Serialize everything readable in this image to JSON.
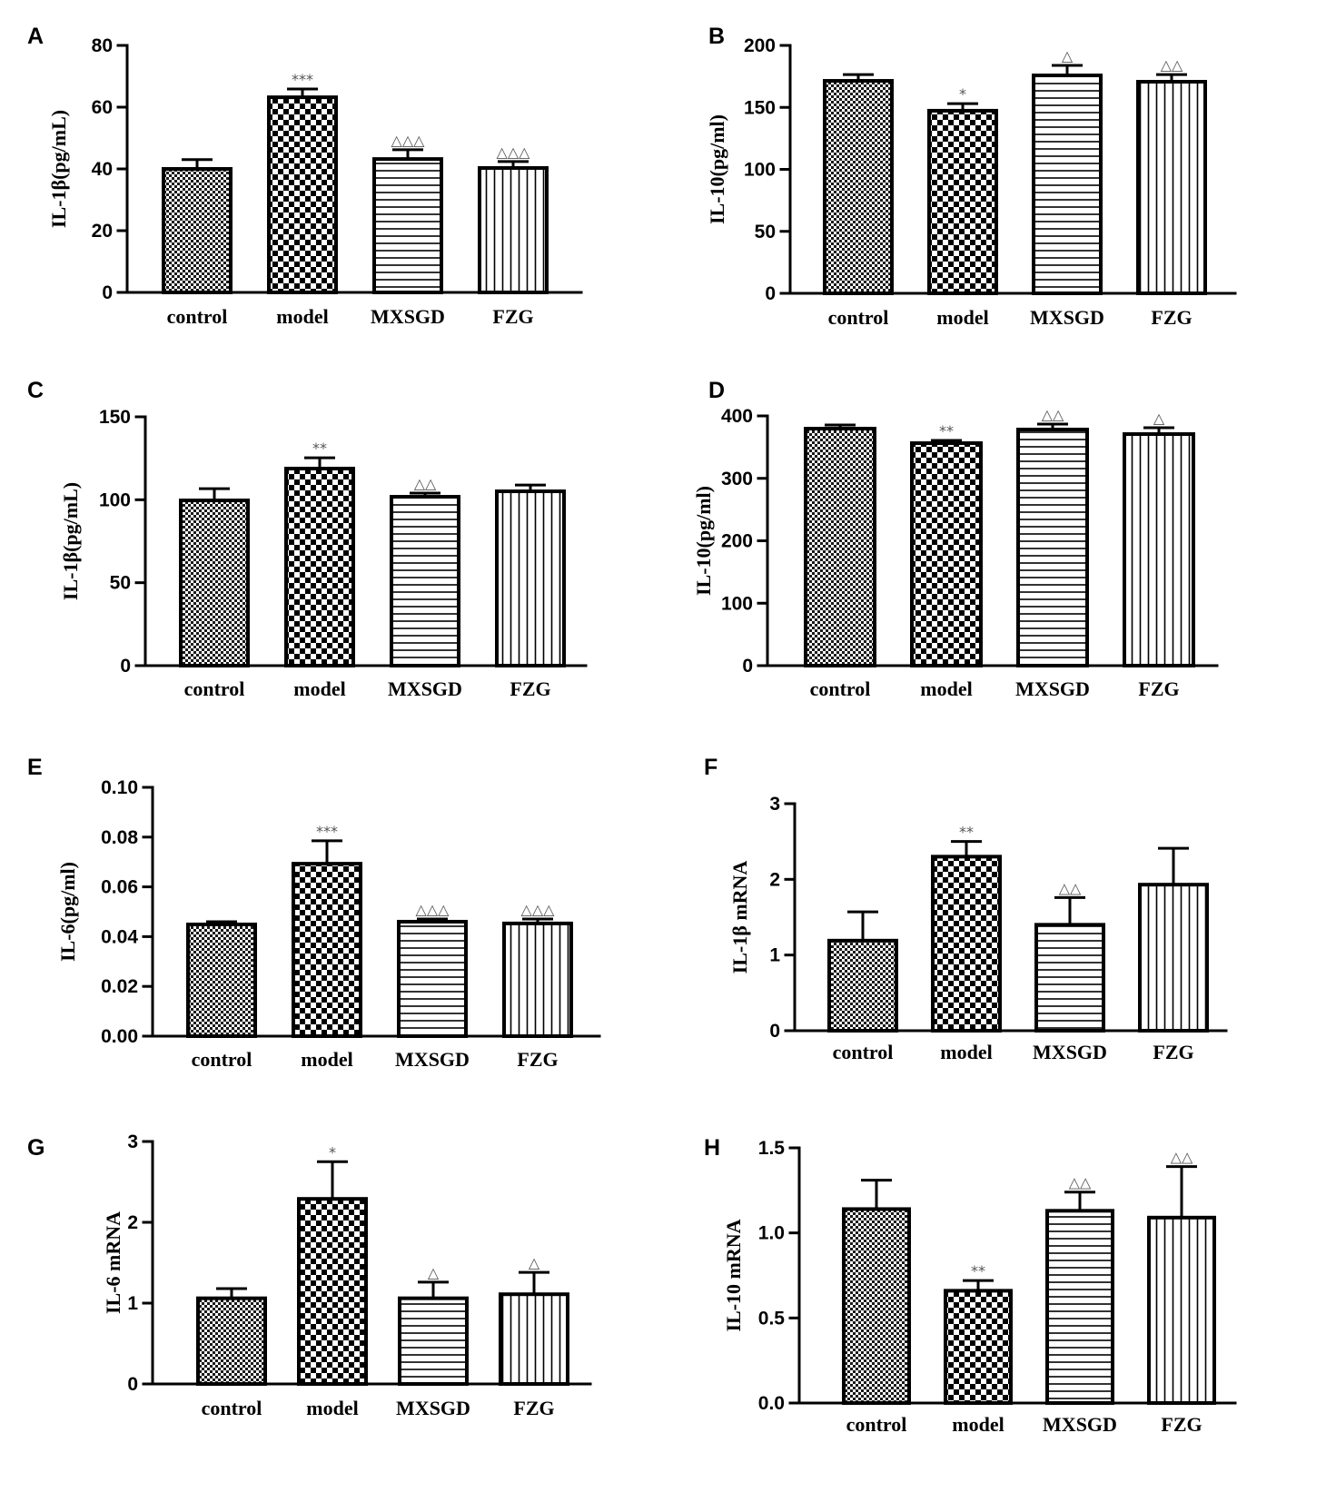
{
  "colors": {
    "background": "#ffffff",
    "bar_edge": "#000000",
    "axis": "#000000",
    "annotation": "#555555"
  },
  "chart_data": [
    {
      "panel": "A",
      "type": "bar",
      "categories": [
        "control",
        "model",
        "MXSGD",
        "FZG"
      ],
      "values": [
        40.0,
        63.2,
        43.2,
        40.3
      ],
      "error_upper": [
        43.0,
        65.9,
        46.2,
        42.4
      ],
      "annotations": [
        null,
        "***",
        "△△△",
        "△△△"
      ],
      "bar_patterns": [
        "fine-check",
        "coarse-check",
        "horizontal-lines",
        "vertical-lines"
      ],
      "ylabel": "IL-1β(pg/mL)",
      "xlabel": "",
      "ylim": [
        0,
        80
      ],
      "yticks": [
        0,
        20,
        40,
        60,
        80
      ],
      "ytick_labels": [
        "0",
        "20",
        "40",
        "60",
        "80"
      ]
    },
    {
      "panel": "B",
      "type": "bar",
      "categories": [
        "control",
        "model",
        "MXSGD",
        "FZG"
      ],
      "values": [
        171.4,
        147.3,
        175.8,
        170.7
      ],
      "error_upper": [
        176.5,
        153.0,
        183.9,
        176.5
      ],
      "annotations": [
        null,
        "*",
        "△",
        "△△"
      ],
      "bar_patterns": [
        "fine-check",
        "coarse-check",
        "horizontal-lines",
        "vertical-lines"
      ],
      "ylabel": "IL-10(pg/ml)",
      "xlabel": "",
      "ylim": [
        0,
        200
      ],
      "yticks": [
        0,
        50,
        100,
        150,
        200
      ],
      "ytick_labels": [
        "0",
        "50",
        "100",
        "150",
        "200"
      ]
    },
    {
      "panel": "C",
      "type": "bar",
      "categories": [
        "control",
        "model",
        "MXSGD",
        "FZG"
      ],
      "values": [
        99.6,
        118.8,
        101.8,
        105.1
      ],
      "error_upper": [
        106.7,
        125.3,
        104.0,
        108.9
      ],
      "annotations": [
        null,
        "**",
        "△△",
        null
      ],
      "bar_patterns": [
        "fine-check",
        "coarse-check",
        "horizontal-lines",
        "vertical-lines"
      ],
      "ylabel": "IL-1β(pg/mL)",
      "xlabel": "",
      "ylim": [
        0,
        150
      ],
      "yticks": [
        0,
        50,
        100,
        150
      ],
      "ytick_labels": [
        "0",
        "50",
        "100",
        "150"
      ]
    },
    {
      "panel": "D",
      "type": "bar",
      "categories": [
        "control",
        "model",
        "MXSGD",
        "FZG"
      ],
      "values": [
        379.6,
        356.4,
        378.2,
        370.9
      ],
      "error_upper": [
        385.5,
        360.7,
        386.9,
        381.1
      ],
      "annotations": [
        null,
        "**",
        "△△",
        "△"
      ],
      "bar_patterns": [
        "fine-check",
        "coarse-check",
        "horizontal-lines",
        "vertical-lines"
      ],
      "ylabel": "IL-10(pg/ml)",
      "xlabel": "",
      "ylim": [
        0,
        400
      ],
      "yticks": [
        0,
        100,
        200,
        300,
        400
      ],
      "ytick_labels": [
        "0",
        "100",
        "200",
        "300",
        "400"
      ]
    },
    {
      "panel": "E",
      "type": "bar",
      "categories": [
        "control",
        "model",
        "MXSGD",
        "FZG"
      ],
      "values": [
        0.0449,
        0.0693,
        0.046,
        0.0453
      ],
      "error_upper": [
        0.046,
        0.0785,
        0.0471,
        0.0471
      ],
      "annotations": [
        null,
        "***",
        "△△△",
        "△△△"
      ],
      "bar_patterns": [
        "fine-check",
        "coarse-check",
        "horizontal-lines",
        "vertical-lines"
      ],
      "ylabel": "IL-6(pg/ml)",
      "xlabel": "",
      "ylim": [
        0,
        0.1
      ],
      "yticks": [
        0,
        0.02,
        0.04,
        0.06,
        0.08,
        0.1
      ],
      "ytick_labels": [
        "0.00",
        "0.02",
        "0.04",
        "0.06",
        "0.08",
        "0.10"
      ]
    },
    {
      "panel": "F",
      "type": "bar",
      "categories": [
        "control",
        "model",
        "MXSGD",
        "FZG"
      ],
      "values": [
        1.19,
        2.3,
        1.4,
        1.93
      ],
      "error_upper": [
        1.57,
        2.5,
        1.76,
        2.41
      ],
      "annotations": [
        null,
        "**",
        "△△",
        null
      ],
      "bar_patterns": [
        "fine-check",
        "coarse-check",
        "horizontal-lines",
        "vertical-lines"
      ],
      "ylabel": "IL-1β mRNA",
      "xlabel": "",
      "ylim": [
        0,
        3
      ],
      "yticks": [
        0,
        1,
        2,
        3
      ],
      "ytick_labels": [
        "0",
        "1",
        "2",
        "3"
      ]
    },
    {
      "panel": "G",
      "type": "bar",
      "categories": [
        "control",
        "model",
        "MXSGD",
        "FZG"
      ],
      "values": [
        1.06,
        2.29,
        1.06,
        1.11
      ],
      "error_upper": [
        1.18,
        2.75,
        1.26,
        1.38
      ],
      "annotations": [
        null,
        "*",
        "△",
        "△"
      ],
      "bar_patterns": [
        "fine-check",
        "coarse-check",
        "horizontal-lines",
        "vertical-lines"
      ],
      "ylabel": "IL-6 mRNA",
      "xlabel": "",
      "ylim": [
        0,
        3
      ],
      "yticks": [
        0,
        1,
        2,
        3
      ],
      "ytick_labels": [
        "0",
        "1",
        "2",
        "3"
      ]
    },
    {
      "panel": "H",
      "type": "bar",
      "categories": [
        "control",
        "model",
        "MXSGD",
        "FZG"
      ],
      "values": [
        1.14,
        0.66,
        1.13,
        1.09
      ],
      "error_upper": [
        1.31,
        0.72,
        1.24,
        1.39
      ],
      "annotations": [
        null,
        "**",
        "△△",
        "△△"
      ],
      "bar_patterns": [
        "fine-check",
        "coarse-check",
        "horizontal-lines",
        "vertical-lines"
      ],
      "ylabel": "IL-10 mRNA",
      "xlabel": "",
      "ylim": [
        0,
        1.5
      ],
      "yticks": [
        0,
        0.5,
        1.0,
        1.5
      ],
      "ytick_labels": [
        "0.0",
        "0.5",
        "1.0",
        "1.5"
      ]
    }
  ]
}
